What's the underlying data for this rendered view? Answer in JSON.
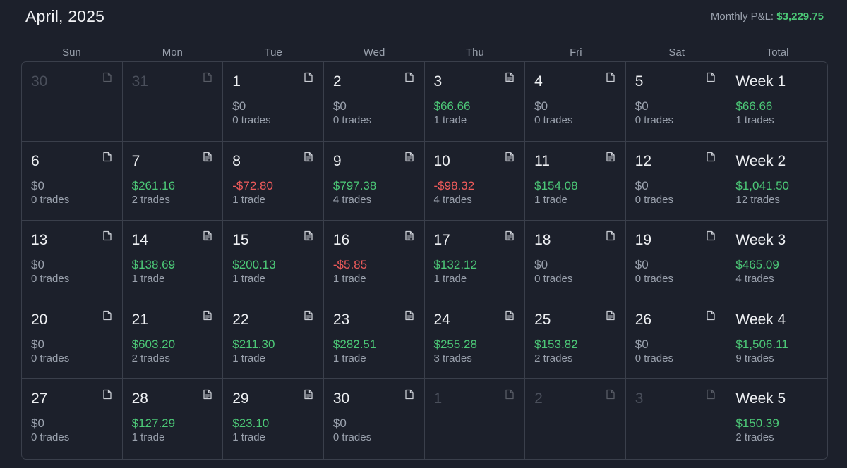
{
  "header": {
    "title": "April, 2025",
    "monthly_label": "Monthly P&L:",
    "monthly_value": "$3,229.75"
  },
  "colors": {
    "background": "#1c202b",
    "positive": "#4cc877",
    "negative": "#ef5b5b",
    "muted": "#9aa1ad",
    "border": "#3a3f4b"
  },
  "columns": [
    "Sun",
    "Mon",
    "Tue",
    "Wed",
    "Thu",
    "Fri",
    "Sat",
    "Total"
  ],
  "weeks": [
    {
      "days": [
        {
          "day": "30",
          "dim": true,
          "icon": "file-icon"
        },
        {
          "day": "31",
          "dim": true,
          "icon": "file-icon"
        },
        {
          "day": "1",
          "pnl": "$0",
          "trades": "0 trades",
          "sign": "zero",
          "icon": "file-icon"
        },
        {
          "day": "2",
          "pnl": "$0",
          "trades": "0 trades",
          "sign": "zero",
          "icon": "file-icon"
        },
        {
          "day": "3",
          "pnl": "$66.66",
          "trades": "1 trade",
          "sign": "pos",
          "icon": "file-text-icon"
        },
        {
          "day": "4",
          "pnl": "$0",
          "trades": "0 trades",
          "sign": "zero",
          "icon": "file-icon"
        },
        {
          "day": "5",
          "pnl": "$0",
          "trades": "0 trades",
          "sign": "zero",
          "icon": "file-icon"
        }
      ],
      "total": {
        "label": "Week 1",
        "pnl": "$66.66",
        "trades": "1 trades",
        "sign": "pos"
      }
    },
    {
      "days": [
        {
          "day": "6",
          "pnl": "$0",
          "trades": "0 trades",
          "sign": "zero",
          "icon": "file-icon"
        },
        {
          "day": "7",
          "pnl": "$261.16",
          "trades": "2 trades",
          "sign": "pos",
          "icon": "file-text-icon"
        },
        {
          "day": "8",
          "pnl": "-$72.80",
          "trades": "1 trade",
          "sign": "neg",
          "icon": "file-text-icon"
        },
        {
          "day": "9",
          "pnl": "$797.38",
          "trades": "4 trades",
          "sign": "pos",
          "icon": "file-text-icon"
        },
        {
          "day": "10",
          "pnl": "-$98.32",
          "trades": "4 trades",
          "sign": "neg",
          "icon": "file-text-icon"
        },
        {
          "day": "11",
          "pnl": "$154.08",
          "trades": "1 trade",
          "sign": "pos",
          "icon": "file-text-icon"
        },
        {
          "day": "12",
          "pnl": "$0",
          "trades": "0 trades",
          "sign": "zero",
          "icon": "file-icon"
        }
      ],
      "total": {
        "label": "Week 2",
        "pnl": "$1,041.50",
        "trades": "12 trades",
        "sign": "pos"
      }
    },
    {
      "days": [
        {
          "day": "13",
          "pnl": "$0",
          "trades": "0 trades",
          "sign": "zero",
          "icon": "file-icon"
        },
        {
          "day": "14",
          "pnl": "$138.69",
          "trades": "1 trade",
          "sign": "pos",
          "icon": "file-text-icon"
        },
        {
          "day": "15",
          "pnl": "$200.13",
          "trades": "1 trade",
          "sign": "pos",
          "icon": "file-text-icon"
        },
        {
          "day": "16",
          "pnl": "-$5.85",
          "trades": "1 trade",
          "sign": "neg",
          "icon": "file-text-icon"
        },
        {
          "day": "17",
          "pnl": "$132.12",
          "trades": "1 trade",
          "sign": "pos",
          "icon": "file-text-icon"
        },
        {
          "day": "18",
          "pnl": "$0",
          "trades": "0 trades",
          "sign": "zero",
          "icon": "file-icon"
        },
        {
          "day": "19",
          "pnl": "$0",
          "trades": "0 trades",
          "sign": "zero",
          "icon": "file-icon"
        }
      ],
      "total": {
        "label": "Week 3",
        "pnl": "$465.09",
        "trades": "4 trades",
        "sign": "pos"
      }
    },
    {
      "days": [
        {
          "day": "20",
          "pnl": "$0",
          "trades": "0 trades",
          "sign": "zero",
          "icon": "file-icon"
        },
        {
          "day": "21",
          "pnl": "$603.20",
          "trades": "2 trades",
          "sign": "pos",
          "icon": "file-text-icon"
        },
        {
          "day": "22",
          "pnl": "$211.30",
          "trades": "1 trade",
          "sign": "pos",
          "icon": "file-text-icon"
        },
        {
          "day": "23",
          "pnl": "$282.51",
          "trades": "1 trade",
          "sign": "pos",
          "icon": "file-text-icon"
        },
        {
          "day": "24",
          "pnl": "$255.28",
          "trades": "3 trades",
          "sign": "pos",
          "icon": "file-text-icon"
        },
        {
          "day": "25",
          "pnl": "$153.82",
          "trades": "2 trades",
          "sign": "pos",
          "icon": "file-text-icon"
        },
        {
          "day": "26",
          "pnl": "$0",
          "trades": "0 trades",
          "sign": "zero",
          "icon": "file-icon"
        }
      ],
      "total": {
        "label": "Week 4",
        "pnl": "$1,506.11",
        "trades": "9 trades",
        "sign": "pos"
      }
    },
    {
      "days": [
        {
          "day": "27",
          "pnl": "$0",
          "trades": "0 trades",
          "sign": "zero",
          "icon": "file-icon"
        },
        {
          "day": "28",
          "pnl": "$127.29",
          "trades": "1 trade",
          "sign": "pos",
          "icon": "file-text-icon"
        },
        {
          "day": "29",
          "pnl": "$23.10",
          "trades": "1 trade",
          "sign": "pos",
          "icon": "file-text-icon"
        },
        {
          "day": "30",
          "pnl": "$0",
          "trades": "0 trades",
          "sign": "zero",
          "icon": "file-icon"
        },
        {
          "day": "1",
          "dim": true,
          "icon": "file-icon"
        },
        {
          "day": "2",
          "dim": true,
          "icon": "file-icon"
        },
        {
          "day": "3",
          "dim": true,
          "icon": "file-icon"
        }
      ],
      "total": {
        "label": "Week 5",
        "pnl": "$150.39",
        "trades": "2 trades",
        "sign": "pos"
      }
    }
  ]
}
